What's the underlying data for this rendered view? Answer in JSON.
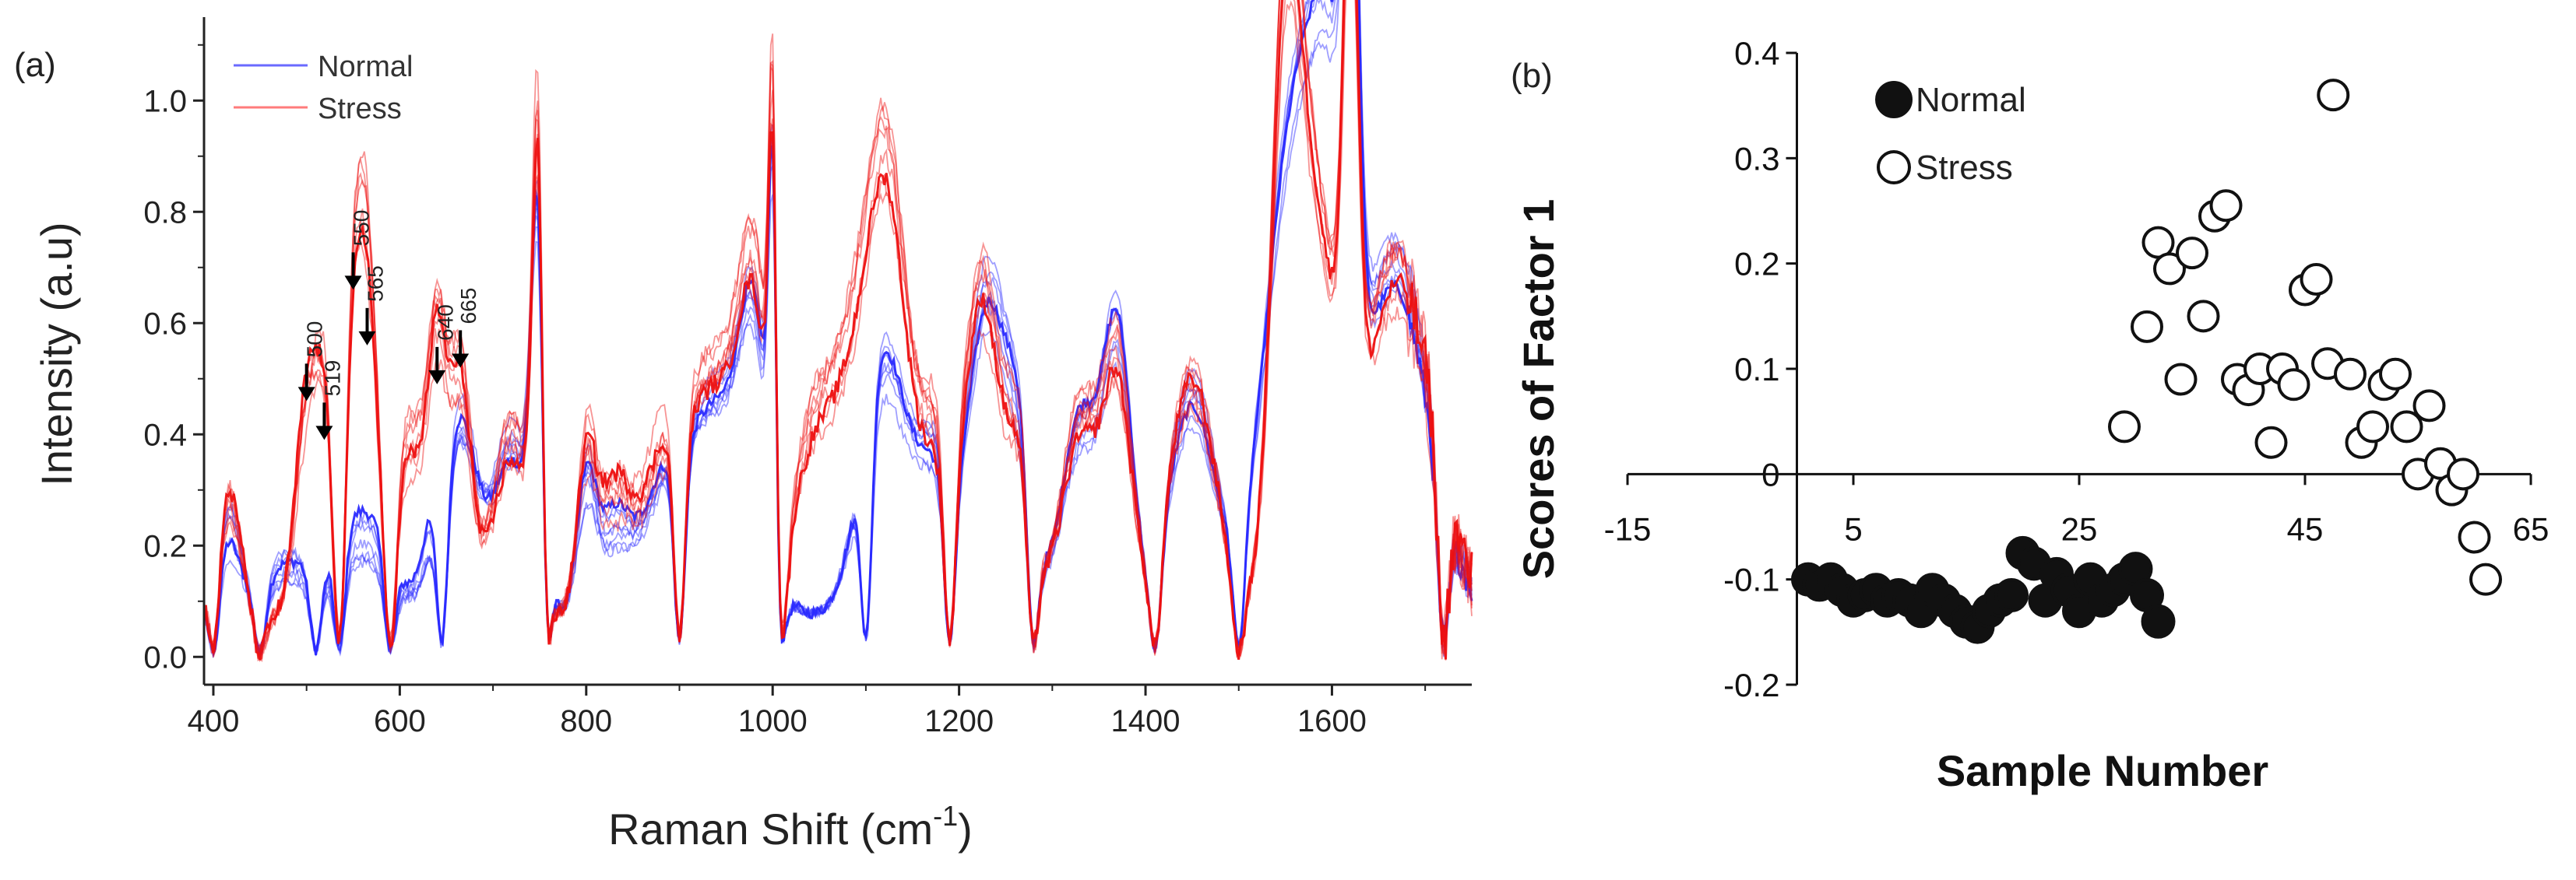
{
  "chart_data": [
    {
      "panel_label": "(a)",
      "type": "line",
      "xlabel": "Raman Shift (cm",
      "xlabel_sup": "-1",
      "xlabel_suffix": ")",
      "ylabel": "Intensity (a.u)",
      "xlim": [
        390,
        1750
      ],
      "ylim": [
        -0.05,
        1.15
      ],
      "x_ticks": [
        400,
        600,
        800,
        1000,
        1200,
        1400,
        1600
      ],
      "y_ticks": [
        0.0,
        0.2,
        0.4,
        0.6,
        0.8,
        1.0
      ],
      "y_tick_labels": [
        "0.0",
        "0.2",
        "0.4",
        "0.6",
        "0.8",
        "1.0"
      ],
      "legend": {
        "position": "top-left",
        "entries": [
          {
            "label": "Normal",
            "color": "#6a6aff"
          },
          {
            "label": "Stress",
            "color": "#ff7b7b"
          }
        ]
      },
      "series": [
        {
          "name": "Normal",
          "color": "#2a2aff",
          "replicates": 8,
          "peaks": [
            [
              415,
              0.15,
              14
            ],
            [
              480,
              0.08,
              25
            ],
            [
              560,
              0.14,
              30
            ],
            [
              635,
              0.1,
              12
            ],
            [
              665,
              0.32,
              18
            ],
            [
              720,
              0.3,
              20
            ],
            [
              750,
              0.72,
              8
            ],
            [
              800,
              0.2,
              10
            ],
            [
              830,
              0.15,
              18
            ],
            [
              880,
              0.15,
              22
            ],
            [
              940,
              0.38,
              35
            ],
            [
              980,
              0.35,
              15
            ],
            [
              1002,
              0.94,
              5
            ],
            [
              1120,
              0.45,
              25
            ],
            [
              1175,
              0.25,
              20
            ],
            [
              1230,
              0.55,
              20
            ],
            [
              1265,
              0.25,
              15
            ],
            [
              1330,
              0.32,
              20
            ],
            [
              1370,
              0.45,
              15
            ],
            [
              1450,
              0.4,
              25
            ],
            [
              1560,
              0.85,
              30
            ],
            [
              1600,
              0.6,
              20
            ],
            [
              1620,
              0.95,
              8
            ],
            [
              1660,
              0.5,
              30
            ],
            [
              1700,
              0.2,
              30
            ]
          ],
          "valleys": [
            400,
            450,
            510,
            535,
            590,
            645,
            760,
            900,
            1010,
            1100,
            1190,
            1280,
            1410,
            1500,
            1720
          ]
        },
        {
          "name": "Stress",
          "color": "#ee1111",
          "replicates": 8,
          "peaks": [
            [
              415,
              0.2,
              14
            ],
            [
              500,
              0.35,
              12
            ],
            [
              519,
              0.3,
              10
            ],
            [
              550,
              0.45,
              14
            ],
            [
              565,
              0.42,
              12
            ],
            [
              610,
              0.3,
              18
            ],
            [
              640,
              0.42,
              10
            ],
            [
              665,
              0.4,
              12
            ],
            [
              720,
              0.32,
              20
            ],
            [
              750,
              0.92,
              7
            ],
            [
              800,
              0.25,
              10
            ],
            [
              830,
              0.2,
              18
            ],
            [
              880,
              0.2,
              22
            ],
            [
              940,
              0.42,
              35
            ],
            [
              980,
              0.4,
              15
            ],
            [
              1002,
              1.0,
              5
            ],
            [
              1040,
              0.2,
              20
            ],
            [
              1090,
              0.45,
              30
            ],
            [
              1125,
              0.55,
              20
            ],
            [
              1175,
              0.3,
              20
            ],
            [
              1225,
              0.55,
              18
            ],
            [
              1265,
              0.28,
              15
            ],
            [
              1330,
              0.35,
              20
            ],
            [
              1370,
              0.42,
              15
            ],
            [
              1450,
              0.4,
              25
            ],
            [
              1550,
              0.85,
              15
            ],
            [
              1580,
              0.7,
              25
            ],
            [
              1620,
              0.95,
              8
            ],
            [
              1660,
              0.5,
              30
            ],
            [
              1700,
              0.25,
              30
            ]
          ],
          "valleys": [
            400,
            450,
            535,
            590,
            760,
            900,
            1010,
            1190,
            1280,
            1410,
            1500,
            1720
          ]
        }
      ],
      "annotations": [
        {
          "label": "500",
          "x": 500,
          "arrow_y": 0.46
        },
        {
          "label": "519",
          "x": 519,
          "arrow_y": 0.39
        },
        {
          "label": "550",
          "x": 550,
          "arrow_y": 0.66
        },
        {
          "label": "565",
          "x": 565,
          "arrow_y": 0.56
        },
        {
          "label": "640",
          "x": 640,
          "arrow_y": 0.49
        },
        {
          "label": "665",
          "x": 665,
          "arrow_y": 0.52
        }
      ]
    },
    {
      "panel_label": "(b)",
      "type": "scatter",
      "xlabel": "Sample Number",
      "ylabel": "Scores of Factor 1",
      "xlim": [
        -15,
        65
      ],
      "ylim": [
        -0.2,
        0.4
      ],
      "x_ticks": [
        -15,
        5,
        25,
        45,
        65
      ],
      "x_tick_labels": [
        "-15",
        "5",
        "25",
        "45",
        "65"
      ],
      "y_ticks": [
        -0.2,
        -0.1,
        0.1,
        0.2,
        0.3,
        0.4
      ],
      "y_tick_labels": [
        "-0.2",
        "-0.1",
        "0.1",
        "0.2",
        "0.3",
        "0.4"
      ],
      "zero_label": "0",
      "legend": {
        "position": "top-left",
        "entries": [
          {
            "label": "Normal",
            "marker": "filled-circle"
          },
          {
            "label": "Stress",
            "marker": "open-circle"
          }
        ]
      },
      "series": [
        {
          "name": "Normal",
          "marker": "filled",
          "points": [
            [
              1,
              -0.1
            ],
            [
              2,
              -0.105
            ],
            [
              3,
              -0.1
            ],
            [
              4,
              -0.11
            ],
            [
              5,
              -0.12
            ],
            [
              6,
              -0.115
            ],
            [
              7,
              -0.11
            ],
            [
              8,
              -0.12
            ],
            [
              9,
              -0.115
            ],
            [
              10,
              -0.12
            ],
            [
              11,
              -0.13
            ],
            [
              12,
              -0.11
            ],
            [
              13,
              -0.12
            ],
            [
              14,
              -0.13
            ],
            [
              15,
              -0.14
            ],
            [
              16,
              -0.145
            ],
            [
              17,
              -0.13
            ],
            [
              18,
              -0.12
            ],
            [
              19,
              -0.115
            ],
            [
              20,
              -0.075
            ],
            [
              21,
              -0.085
            ],
            [
              22,
              -0.12
            ],
            [
              23,
              -0.095
            ],
            [
              24,
              -0.11
            ],
            [
              25,
              -0.13
            ],
            [
              26,
              -0.1
            ],
            [
              27,
              -0.12
            ],
            [
              28,
              -0.11
            ],
            [
              29,
              -0.1
            ],
            [
              30,
              -0.09
            ],
            [
              31,
              -0.115
            ],
            [
              32,
              -0.14
            ]
          ]
        },
        {
          "name": "Stress",
          "marker": "open",
          "points": [
            [
              29,
              0.045
            ],
            [
              31,
              0.14
            ],
            [
              32,
              0.22
            ],
            [
              33,
              0.195
            ],
            [
              34,
              0.09
            ],
            [
              35,
              0.21
            ],
            [
              36,
              0.15
            ],
            [
              37,
              0.245
            ],
            [
              38,
              0.255
            ],
            [
              39,
              0.09
            ],
            [
              40,
              0.08
            ],
            [
              41,
              0.1
            ],
            [
              42,
              0.03
            ],
            [
              43,
              0.1
            ],
            [
              44,
              0.085
            ],
            [
              45,
              0.175
            ],
            [
              46,
              0.185
            ],
            [
              47,
              0.105
            ],
            [
              47.5,
              0.36
            ],
            [
              49,
              0.095
            ],
            [
              50,
              0.03
            ],
            [
              51,
              0.045
            ],
            [
              52,
              0.085
            ],
            [
              53,
              0.095
            ],
            [
              54,
              0.045
            ],
            [
              55,
              0.0
            ],
            [
              56,
              0.065
            ],
            [
              57,
              0.01
            ],
            [
              58,
              -0.015
            ],
            [
              59,
              0.0
            ],
            [
              60,
              -0.06
            ],
            [
              61,
              -0.1
            ]
          ]
        }
      ]
    }
  ]
}
